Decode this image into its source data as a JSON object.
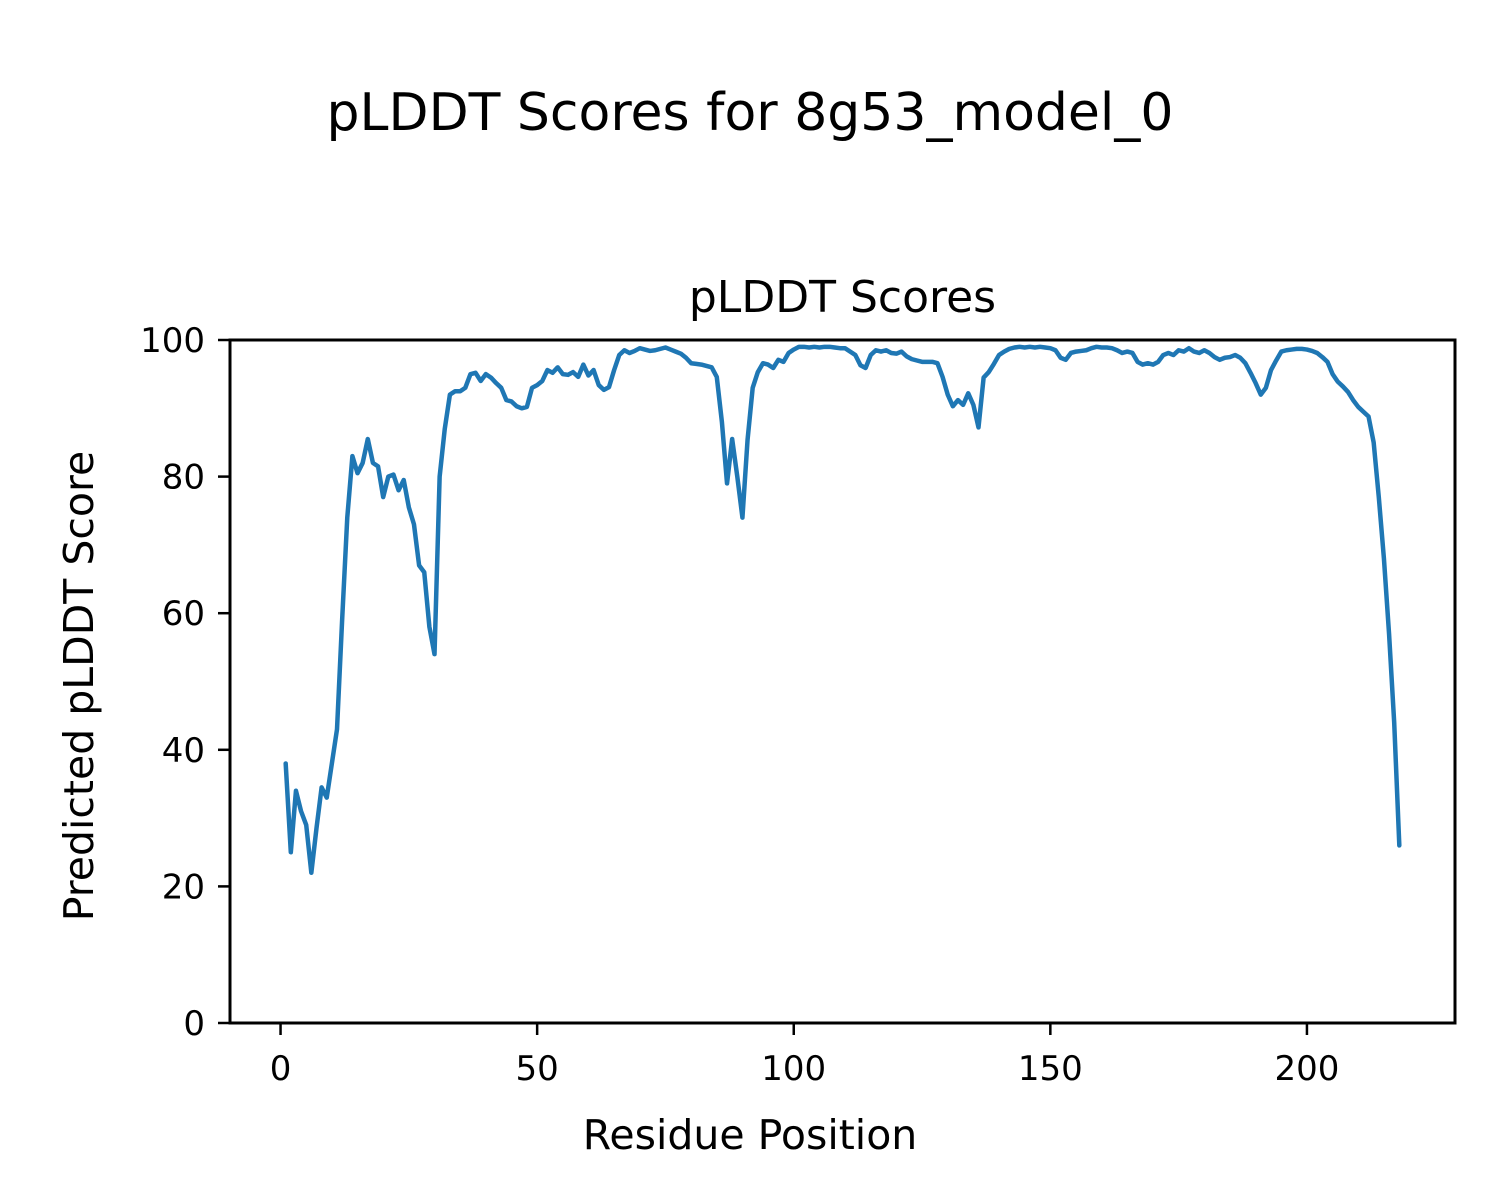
{
  "figure": {
    "title": "pLDDT Scores for 8g53_model_0",
    "background": "#ffffff",
    "text_color": "#000000"
  },
  "chart_data": {
    "type": "line",
    "title": "pLDDT Scores",
    "xlabel": "Residue Position",
    "ylabel": "Predicted pLDDT Score",
    "grid": false,
    "legend_position": "none",
    "line_color": "#1f77b4",
    "spine_color": "#000000",
    "x_start": 1,
    "x_ticks": [
      0,
      50,
      100,
      150,
      200
    ],
    "y_ticks": [
      0,
      20,
      40,
      60,
      80,
      100
    ],
    "xlim": [
      -9.85,
      228.85
    ],
    "ylim": [
      0,
      100
    ],
    "series": [
      {
        "name": "pLDDT",
        "values": [
          38,
          25,
          34,
          31,
          29,
          22,
          28.5,
          34.5,
          33,
          38,
          43,
          59,
          74,
          83,
          80.5,
          82,
          85.5,
          82,
          81.5,
          77,
          80,
          80.3,
          78,
          79.5,
          75.5,
          73,
          67,
          66,
          58,
          54,
          80,
          87,
          92,
          92.5,
          92.5,
          93,
          95,
          95.2,
          94,
          95,
          94.5,
          93.7,
          93,
          91.2,
          91,
          90.3,
          90,
          90.2,
          93,
          93.4,
          94,
          95.6,
          95.2,
          96,
          95,
          94.9,
          95.3,
          94.6,
          96.4,
          94.8,
          95.6,
          93.4,
          92.7,
          93.1,
          95.6,
          97.8,
          98.5,
          98.1,
          98.4,
          98.8,
          98.6,
          98.4,
          98.5,
          98.7,
          98.9,
          98.6,
          98.3,
          98,
          97.4,
          96.6,
          96.5,
          96.4,
          96.2,
          96,
          94.6,
          88,
          79,
          85.5,
          80,
          74,
          85.4,
          93,
          95.3,
          96.6,
          96.4,
          95.9,
          97.1,
          96.8,
          98.1,
          98.6,
          99,
          99,
          98.9,
          99,
          98.9,
          99,
          99,
          98.9,
          98.8,
          98.8,
          98.3,
          97.8,
          96.3,
          95.9,
          97.8,
          98.5,
          98.3,
          98.5,
          98.1,
          98,
          98.3,
          97.6,
          97.2,
          97,
          96.8,
          96.8,
          96.8,
          96.6,
          94.6,
          92,
          90.3,
          91.2,
          90.5,
          92.2,
          90.5,
          87.2,
          94.5,
          95.3,
          96.5,
          97.8,
          98.3,
          98.7,
          98.9,
          99,
          98.9,
          99,
          98.9,
          99,
          98.9,
          98.8,
          98.5,
          97.4,
          97.1,
          98.1,
          98.3,
          98.4,
          98.5,
          98.8,
          99,
          98.9,
          98.9,
          98.8,
          98.5,
          98.1,
          98.3,
          98.1,
          96.8,
          96.4,
          96.6,
          96.4,
          96.8,
          97.8,
          98.1,
          97.8,
          98.5,
          98.3,
          98.8,
          98.3,
          98.1,
          98.5,
          98.1,
          97.5,
          97.1,
          97.4,
          97.5,
          97.8,
          97.4,
          96.6,
          95.2,
          93.7,
          92,
          93,
          95.6,
          97,
          98.3,
          98.5,
          98.6,
          98.7,
          98.7,
          98.6,
          98.4,
          98.1,
          97.5,
          96.8,
          95,
          93.9,
          93.2,
          92.4,
          91.2,
          90.2,
          89.5,
          88.8,
          85,
          77,
          68,
          57,
          44,
          26
        ]
      }
    ]
  }
}
